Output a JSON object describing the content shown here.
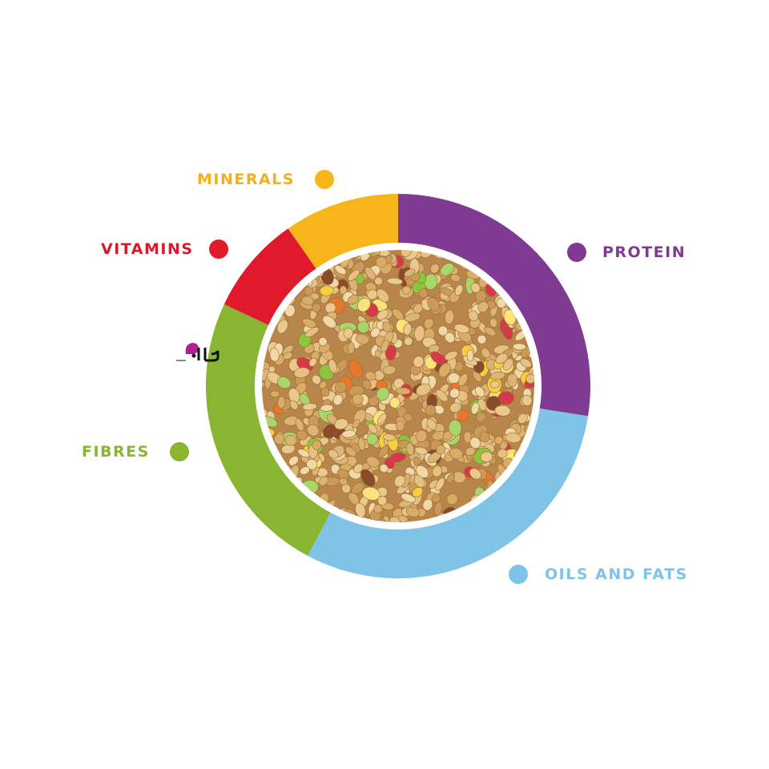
{
  "chart_data": {
    "type": "pie",
    "variant": "donut",
    "title": "",
    "values_estimated_percent": true,
    "slices": [
      {
        "label": "PROTEIN",
        "value": 27.5,
        "color": "#7f3a91"
      },
      {
        "label": "OILS AND FATS",
        "value": 30.3,
        "color": "#7fc3e6"
      },
      {
        "label": "FIBRES",
        "value": 24.2,
        "color": "#8ab532"
      },
      {
        "label": "VITAMINS",
        "value": 8.3,
        "color": "#e01a2a"
      },
      {
        "label": "MINERALS",
        "value": 9.7,
        "color": "#f7b51c"
      }
    ],
    "start_angle": "top, clockwise",
    "center_image": "mixed bird seed food",
    "legend_placement": "around"
  },
  "logo": {
    "text": "پاراد",
    "color": "#b0208f"
  }
}
